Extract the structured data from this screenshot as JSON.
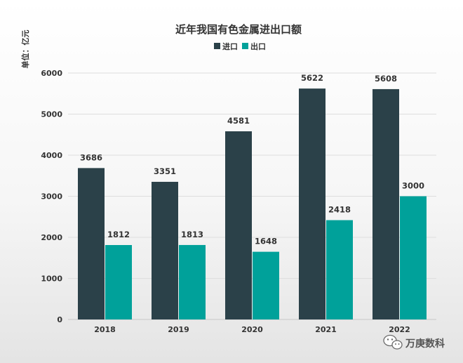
{
  "chart_data": {
    "type": "bar",
    "title": "近年我国有色金属进出口额",
    "unit": "单位：亿元",
    "categories": [
      "2018",
      "2019",
      "2020",
      "2021",
      "2022"
    ],
    "series": [
      {
        "name": "进口",
        "color": "#2b4149",
        "values": [
          3686,
          3351,
          4581,
          5622,
          5608
        ]
      },
      {
        "name": "出口",
        "color": "#00a19a",
        "values": [
          1812,
          1813,
          1648,
          2418,
          3000
        ]
      }
    ],
    "ylim": [
      0,
      6000
    ],
    "yticks": [
      0,
      1000,
      2000,
      3000,
      4000,
      5000,
      6000
    ],
    "legend_position": "top-center",
    "grid": true
  },
  "watermark": {
    "text": "万庚数科",
    "icon": "wechat-icon"
  }
}
